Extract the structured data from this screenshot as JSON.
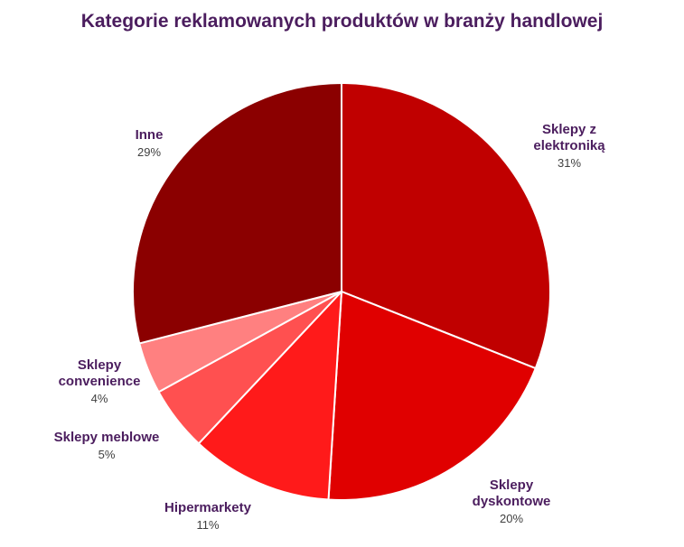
{
  "chart_data": {
    "type": "pie",
    "title": "Kategorie reklamowanych produktów w branży handlowej",
    "slices": [
      {
        "name": "Sklepy z elektroniką",
        "name_lines": [
          "Sklepy z",
          "elektroniką"
        ],
        "value": 31,
        "label": "31%",
        "color": "#c00000"
      },
      {
        "name": "Sklepy dyskontowe",
        "name_lines": [
          "Sklepy",
          "dyskontowe"
        ],
        "value": 20,
        "label": "20%",
        "color": "#e00000"
      },
      {
        "name": "Hipermarkety",
        "name_lines": [
          "Hipermarkety"
        ],
        "value": 11,
        "label": "11%",
        "color": "#ff1a1a"
      },
      {
        "name": "Sklepy meblowe",
        "name_lines": [
          "Sklepy meblowe"
        ],
        "value": 5,
        "label": "5%",
        "color": "#ff5050"
      },
      {
        "name": "Sklepy convenience",
        "name_lines": [
          "Sklepy",
          "convenience"
        ],
        "value": 4,
        "label": "4%",
        "color": "#ff8080"
      },
      {
        "name": "Inne",
        "name_lines": [
          "Inne"
        ],
        "value": 29,
        "label": "29%",
        "color": "#8b0000"
      }
    ],
    "start_angle_deg": 0,
    "direction": "clockwise",
    "legend": "none"
  }
}
